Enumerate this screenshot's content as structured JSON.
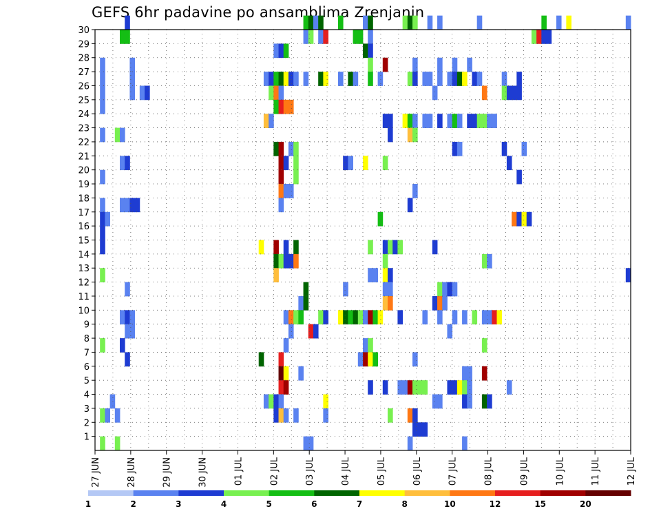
{
  "chart_data": {
    "type": "heatmap",
    "title": "GEFS 6hr padavine po ansamblima Zrenjanin",
    "xlabel": "",
    "ylabel": "",
    "x_ticks": [
      "27 JUN",
      "28 JUN",
      "29 JUN",
      "30 JUN",
      "01 JUL",
      "02 JUL",
      "03 JUL",
      "04 JUL",
      "05 JUL",
      "06 JUL",
      "07 JUL",
      "08 JUL",
      "09 JUL",
      "10 JUL",
      "11 JUL",
      "12 JUL"
    ],
    "y_ticks": [
      1,
      2,
      3,
      4,
      5,
      6,
      7,
      8,
      9,
      10,
      11,
      12,
      13,
      14,
      15,
      16,
      17,
      18,
      19,
      20,
      21,
      22,
      23,
      24,
      25,
      26,
      27,
      28,
      29,
      30
    ],
    "xlim": [
      0,
      60
    ],
    "ylim": [
      0,
      30
    ],
    "grid": true,
    "time_step_hours": 6,
    "legend": {
      "position": "bottom",
      "labels": [
        "1",
        "2",
        "3",
        "4",
        "5",
        "6",
        "7",
        "8",
        "10",
        "12",
        "15",
        "20"
      ],
      "colors": [
        "#b4c8f5",
        "#5a82f0",
        "#1e3cd2",
        "#78f050",
        "#14be14",
        "#006400",
        "#ffff00",
        "#ffbe3c",
        "#ff7814",
        "#e61e1e",
        "#a00000",
        "#640000"
      ]
    },
    "cells": [
      [
        6,
        30,
        2
      ],
      [
        42,
        30,
        4
      ],
      [
        43,
        30,
        5
      ],
      [
        44,
        30,
        1
      ],
      [
        45,
        30,
        5
      ],
      [
        49,
        30,
        4
      ],
      [
        54,
        30,
        1
      ],
      [
        55,
        30,
        5
      ],
      [
        62,
        30,
        3
      ],
      [
        63,
        30,
        5
      ],
      [
        64,
        30,
        3
      ],
      [
        67,
        30,
        1
      ],
      [
        69,
        30,
        1
      ],
      [
        77,
        30,
        1
      ],
      [
        90,
        30,
        4
      ],
      [
        93,
        30,
        1
      ],
      [
        95,
        30,
        6
      ],
      [
        107,
        30,
        1
      ],
      [
        5,
        29,
        4
      ],
      [
        6,
        29,
        4
      ],
      [
        42,
        29,
        1
      ],
      [
        43,
        29,
        3
      ],
      [
        45,
        29,
        1
      ],
      [
        46,
        29,
        9
      ],
      [
        52,
        29,
        4
      ],
      [
        53,
        29,
        4
      ],
      [
        55,
        29,
        1
      ],
      [
        88,
        29,
        3
      ],
      [
        89,
        29,
        9
      ],
      [
        90,
        29,
        2
      ],
      [
        91,
        29,
        2
      ],
      [
        36,
        28,
        1
      ],
      [
        37,
        28,
        2
      ],
      [
        38,
        28,
        4
      ],
      [
        54,
        28,
        5
      ],
      [
        55,
        28,
        2
      ],
      [
        1,
        27,
        1
      ],
      [
        7,
        27,
        1
      ],
      [
        55,
        27,
        3
      ],
      [
        58,
        27,
        10
      ],
      [
        64,
        27,
        1
      ],
      [
        69,
        27,
        1
      ],
      [
        72,
        27,
        1
      ],
      [
        75,
        27,
        1
      ],
      [
        1,
        26,
        1
      ],
      [
        7,
        26,
        1
      ],
      [
        34,
        26,
        1
      ],
      [
        35,
        26,
        2
      ],
      [
        36,
        26,
        4
      ],
      [
        37,
        26,
        5
      ],
      [
        38,
        26,
        6
      ],
      [
        39,
        26,
        2
      ],
      [
        40,
        26,
        1
      ],
      [
        42,
        26,
        1
      ],
      [
        45,
        26,
        5
      ],
      [
        46,
        26,
        6
      ],
      [
        49,
        26,
        1
      ],
      [
        51,
        26,
        5
      ],
      [
        52,
        26,
        1
      ],
      [
        55,
        26,
        4
      ],
      [
        57,
        26,
        1
      ],
      [
        63,
        26,
        3
      ],
      [
        64,
        26,
        2
      ],
      [
        66,
        26,
        1
      ],
      [
        67,
        26,
        1
      ],
      [
        69,
        26,
        1
      ],
      [
        71,
        26,
        1
      ],
      [
        72,
        26,
        2
      ],
      [
        73,
        26,
        5
      ],
      [
        74,
        26,
        6
      ],
      [
        76,
        26,
        2
      ],
      [
        77,
        26,
        1
      ],
      [
        82,
        26,
        1
      ],
      [
        85,
        26,
        2
      ],
      [
        1,
        25,
        1
      ],
      [
        7,
        25,
        1
      ],
      [
        9,
        25,
        1
      ],
      [
        10,
        25,
        2
      ],
      [
        35,
        25,
        3
      ],
      [
        36,
        25,
        8
      ],
      [
        37,
        25,
        1
      ],
      [
        68,
        25,
        1
      ],
      [
        78,
        25,
        8
      ],
      [
        82,
        25,
        3
      ],
      [
        83,
        25,
        2
      ],
      [
        84,
        25,
        2
      ],
      [
        85,
        25,
        2
      ],
      [
        1,
        24,
        1
      ],
      [
        36,
        24,
        4
      ],
      [
        37,
        24,
        9
      ],
      [
        38,
        24,
        8
      ],
      [
        39,
        24,
        8
      ],
      [
        34,
        23,
        7
      ],
      [
        35,
        23,
        1
      ],
      [
        58,
        23,
        2
      ],
      [
        59,
        23,
        2
      ],
      [
        62,
        23,
        6
      ],
      [
        63,
        23,
        4
      ],
      [
        64,
        23,
        1
      ],
      [
        66,
        23,
        1
      ],
      [
        67,
        23,
        1
      ],
      [
        69,
        23,
        2
      ],
      [
        71,
        23,
        1
      ],
      [
        72,
        23,
        4
      ],
      [
        73,
        23,
        1
      ],
      [
        75,
        23,
        2
      ],
      [
        76,
        23,
        2
      ],
      [
        77,
        23,
        3
      ],
      [
        78,
        23,
        3
      ],
      [
        79,
        23,
        1
      ],
      [
        80,
        23,
        1
      ],
      [
        1,
        22,
        1
      ],
      [
        4,
        22,
        3
      ],
      [
        5,
        22,
        1
      ],
      [
        59,
        22,
        2
      ],
      [
        63,
        22,
        7
      ],
      [
        64,
        22,
        3
      ],
      [
        36,
        21,
        5
      ],
      [
        37,
        21,
        10
      ],
      [
        39,
        21,
        1
      ],
      [
        40,
        21,
        3
      ],
      [
        72,
        21,
        2
      ],
      [
        73,
        21,
        1
      ],
      [
        82,
        21,
        2
      ],
      [
        86,
        21,
        1
      ],
      [
        5,
        20,
        1
      ],
      [
        6,
        20,
        2
      ],
      [
        37,
        20,
        10
      ],
      [
        38,
        20,
        2
      ],
      [
        40,
        20,
        3
      ],
      [
        50,
        20,
        2
      ],
      [
        51,
        20,
        1
      ],
      [
        54,
        20,
        6
      ],
      [
        58,
        20,
        3
      ],
      [
        83,
        20,
        2
      ],
      [
        1,
        19,
        1
      ],
      [
        37,
        19,
        10
      ],
      [
        40,
        19,
        3
      ],
      [
        85,
        19,
        2
      ],
      [
        37,
        18,
        8
      ],
      [
        38,
        18,
        1
      ],
      [
        39,
        18,
        1
      ],
      [
        64,
        18,
        1
      ],
      [
        1,
        17,
        1
      ],
      [
        5,
        17,
        1
      ],
      [
        6,
        17,
        1
      ],
      [
        7,
        17,
        2
      ],
      [
        8,
        17,
        2
      ],
      [
        37,
        17,
        1
      ],
      [
        63,
        17,
        2
      ],
      [
        1,
        16,
        2
      ],
      [
        2,
        16,
        1
      ],
      [
        57,
        16,
        4
      ],
      [
        84,
        16,
        8
      ],
      [
        85,
        16,
        2
      ],
      [
        86,
        16,
        6
      ],
      [
        87,
        16,
        2
      ],
      [
        1,
        15,
        2
      ],
      [
        1,
        14,
        2
      ],
      [
        33,
        14,
        6
      ],
      [
        36,
        14,
        10
      ],
      [
        38,
        14,
        2
      ],
      [
        40,
        14,
        5
      ],
      [
        55,
        14,
        3
      ],
      [
        58,
        14,
        2
      ],
      [
        59,
        14,
        3
      ],
      [
        60,
        14,
        2
      ],
      [
        61,
        14,
        3
      ],
      [
        68,
        14,
        2
      ],
      [
        36,
        13,
        5
      ],
      [
        37,
        13,
        3
      ],
      [
        38,
        13,
        2
      ],
      [
        39,
        13,
        2
      ],
      [
        40,
        13,
        8
      ],
      [
        58,
        13,
        3
      ],
      [
        78,
        13,
        3
      ],
      [
        79,
        13,
        1
      ],
      [
        1,
        12,
        3
      ],
      [
        36,
        12,
        7
      ],
      [
        55,
        12,
        1
      ],
      [
        56,
        12,
        1
      ],
      [
        58,
        12,
        6
      ],
      [
        59,
        12,
        2
      ],
      [
        107,
        12,
        2
      ],
      [
        6,
        11,
        1
      ],
      [
        42,
        11,
        5
      ],
      [
        50,
        11,
        1
      ],
      [
        58,
        11,
        1
      ],
      [
        59,
        11,
        1
      ],
      [
        69,
        11,
        3
      ],
      [
        70,
        11,
        1
      ],
      [
        71,
        11,
        2
      ],
      [
        72,
        11,
        1
      ],
      [
        41,
        10,
        1
      ],
      [
        42,
        10,
        5
      ],
      [
        58,
        10,
        7
      ],
      [
        59,
        10,
        8
      ],
      [
        68,
        10,
        2
      ],
      [
        69,
        10,
        8
      ],
      [
        70,
        10,
        1
      ],
      [
        5,
        9,
        1
      ],
      [
        6,
        9,
        2
      ],
      [
        7,
        9,
        1
      ],
      [
        38,
        9,
        1
      ],
      [
        39,
        9,
        8
      ],
      [
        40,
        9,
        3
      ],
      [
        41,
        9,
        4
      ],
      [
        45,
        9,
        3
      ],
      [
        46,
        9,
        2
      ],
      [
        49,
        9,
        6
      ],
      [
        50,
        9,
        5
      ],
      [
        51,
        9,
        4
      ],
      [
        52,
        9,
        5
      ],
      [
        53,
        9,
        3
      ],
      [
        54,
        9,
        1
      ],
      [
        55,
        9,
        10
      ],
      [
        56,
        9,
        4
      ],
      [
        57,
        9,
        6
      ],
      [
        61,
        9,
        2
      ],
      [
        66,
        9,
        1
      ],
      [
        69,
        9,
        1
      ],
      [
        72,
        9,
        1
      ],
      [
        74,
        9,
        1
      ],
      [
        76,
        9,
        3
      ],
      [
        78,
        9,
        1
      ],
      [
        79,
        9,
        1
      ],
      [
        80,
        9,
        9
      ],
      [
        81,
        9,
        6
      ],
      [
        6,
        8,
        1
      ],
      [
        7,
        8,
        1
      ],
      [
        39,
        8,
        1
      ],
      [
        43,
        8,
        9
      ],
      [
        44,
        8,
        2
      ],
      [
        71,
        8,
        1
      ],
      [
        1,
        7,
        3
      ],
      [
        5,
        7,
        2
      ],
      [
        38,
        7,
        1
      ],
      [
        54,
        7,
        1
      ],
      [
        55,
        7,
        3
      ],
      [
        78,
        7,
        3
      ],
      [
        6,
        6,
        2
      ],
      [
        33,
        6,
        5
      ],
      [
        37,
        6,
        9
      ],
      [
        53,
        6,
        1
      ],
      [
        54,
        6,
        10
      ],
      [
        55,
        6,
        6
      ],
      [
        56,
        6,
        4
      ],
      [
        64,
        6,
        1
      ],
      [
        41,
        5,
        1
      ],
      [
        37,
        5,
        11
      ],
      [
        38,
        5,
        6
      ],
      [
        74,
        5,
        1
      ],
      [
        75,
        5,
        1
      ],
      [
        78,
        5,
        10
      ],
      [
        37,
        4,
        9
      ],
      [
        38,
        4,
        10
      ],
      [
        55,
        4,
        2
      ],
      [
        58,
        4,
        2
      ],
      [
        61,
        4,
        1
      ],
      [
        62,
        4,
        1
      ],
      [
        63,
        4,
        10
      ],
      [
        64,
        4,
        3
      ],
      [
        65,
        4,
        3
      ],
      [
        66,
        4,
        3
      ],
      [
        71,
        4,
        2
      ],
      [
        72,
        4,
        2
      ],
      [
        73,
        4,
        6
      ],
      [
        74,
        4,
        3
      ],
      [
        75,
        4,
        1
      ],
      [
        83,
        4,
        1
      ],
      [
        3,
        3,
        1
      ],
      [
        34,
        3,
        1
      ],
      [
        35,
        3,
        3
      ],
      [
        36,
        3,
        2
      ],
      [
        37,
        3,
        1
      ],
      [
        46,
        3,
        6
      ],
      [
        68,
        3,
        1
      ],
      [
        69,
        3,
        1
      ],
      [
        74,
        3,
        2
      ],
      [
        75,
        3,
        1
      ],
      [
        78,
        3,
        5
      ],
      [
        79,
        3,
        2
      ],
      [
        1,
        2,
        3
      ],
      [
        2,
        2,
        1
      ],
      [
        4,
        2,
        1
      ],
      [
        36,
        2,
        2
      ],
      [
        37,
        2,
        7
      ],
      [
        38,
        2,
        1
      ],
      [
        40,
        2,
        1
      ],
      [
        46,
        2,
        1
      ],
      [
        59,
        2,
        3
      ],
      [
        63,
        2,
        8
      ],
      [
        64,
        2,
        2
      ],
      [
        64,
        1,
        2
      ],
      [
        65,
        1,
        2
      ],
      [
        66,
        1,
        2
      ],
      [
        1,
        0,
        3
      ],
      [
        4,
        0,
        3
      ],
      [
        42,
        0,
        1
      ],
      [
        43,
        0,
        1
      ],
      [
        63,
        0,
        1
      ],
      [
        74,
        0,
        1
      ]
    ]
  }
}
